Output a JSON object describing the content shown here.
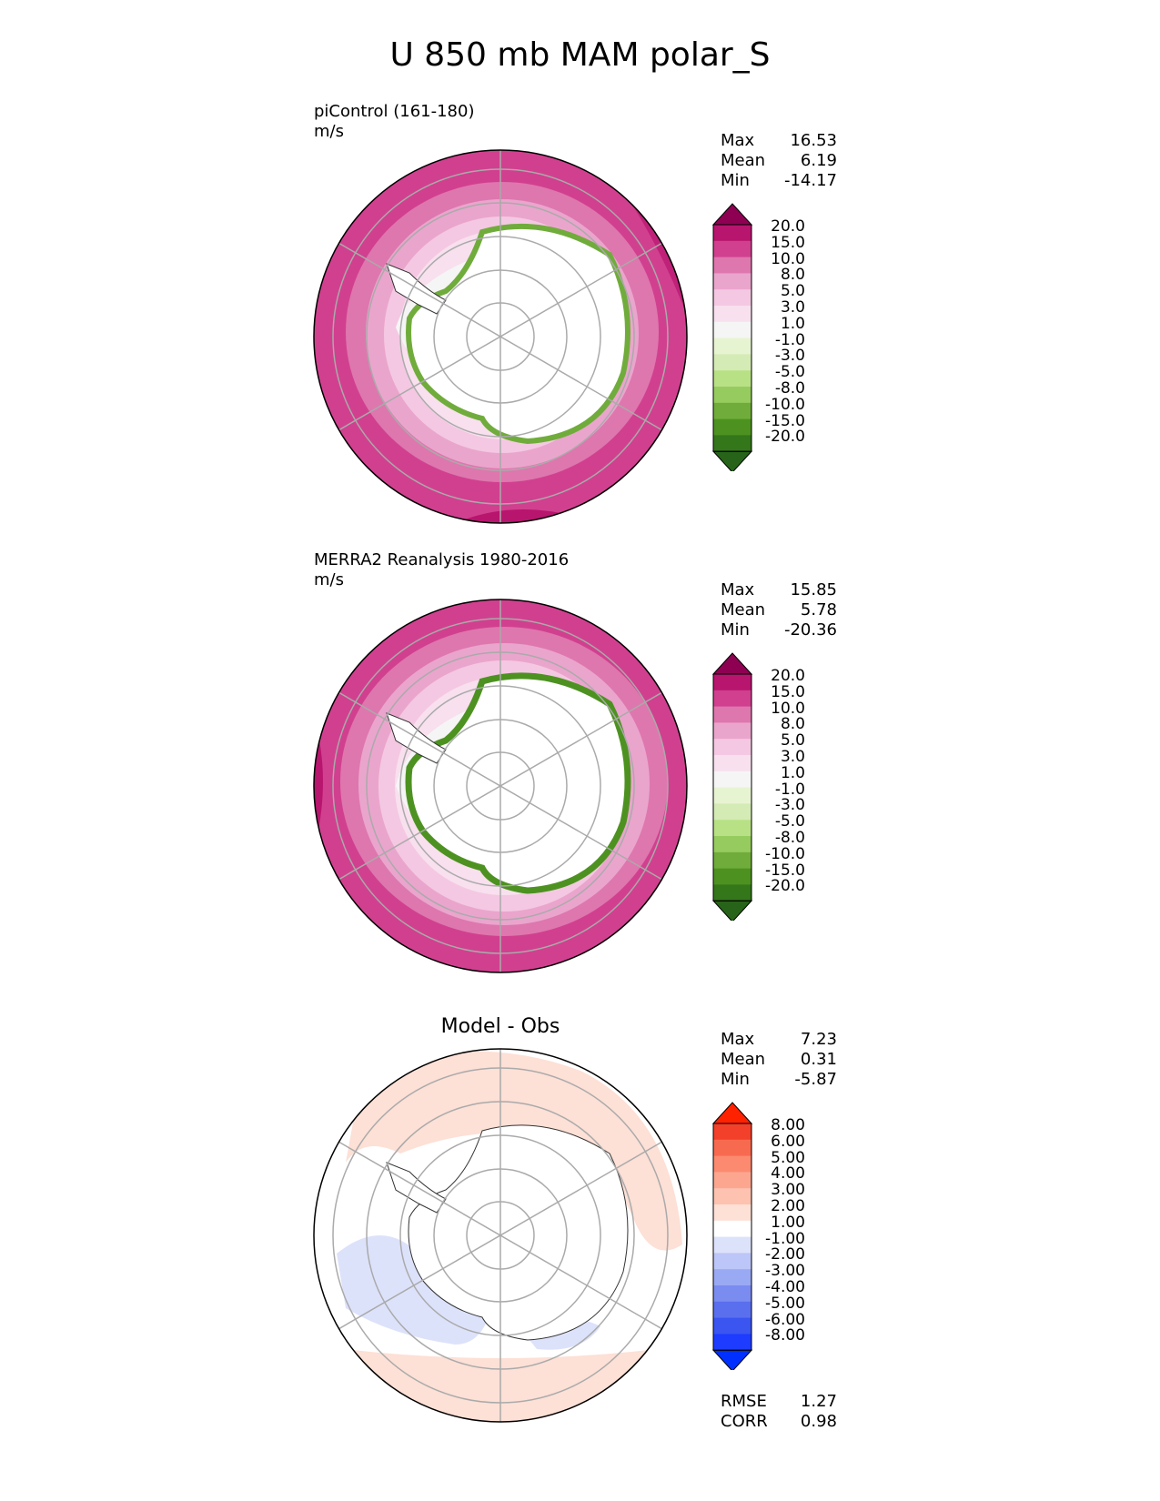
{
  "title": "U 850 mb MAM polar_S",
  "panels": [
    {
      "label1": "piControl (161-180)",
      "label2": "m/s",
      "stats": [
        {
          "label": "Max",
          "value": "16.53"
        },
        {
          "label": "Mean",
          "value": "6.19"
        },
        {
          "label": "Min",
          "value": "-14.17"
        }
      ],
      "colorbar": {
        "levels": [
          "20.0",
          "15.0",
          "10.0",
          "8.0",
          "5.0",
          "3.0",
          "1.0",
          "-1.0",
          "-3.0",
          "-5.0",
          "-8.0",
          "-10.0",
          "-15.0",
          "-20.0"
        ],
        "colors": [
          "#8e0152",
          "#b8156e",
          "#d1408f",
          "#de77ae",
          "#eaa5cd",
          "#f4c8e2",
          "#f8e0ee",
          "#f5f5f5",
          "#e7f4d2",
          "#d4ebb5",
          "#b8e186",
          "#96cc5f",
          "#70ac3b",
          "#4d9221",
          "#34761a",
          "#276419"
        ]
      }
    },
    {
      "label1": "MERRA2 Reanalysis 1980-2016",
      "label2": "m/s",
      "stats": [
        {
          "label": "Max",
          "value": "15.85"
        },
        {
          "label": "Mean",
          "value": "5.78"
        },
        {
          "label": "Min",
          "value": "-20.36"
        }
      ],
      "colorbar": {
        "levels": [
          "20.0",
          "15.0",
          "10.0",
          "8.0",
          "5.0",
          "3.0",
          "1.0",
          "-1.0",
          "-3.0",
          "-5.0",
          "-8.0",
          "-10.0",
          "-15.0",
          "-20.0"
        ],
        "colors": [
          "#8e0152",
          "#b8156e",
          "#d1408f",
          "#de77ae",
          "#eaa5cd",
          "#f4c8e2",
          "#f8e0ee",
          "#f5f5f5",
          "#e7f4d2",
          "#d4ebb5",
          "#b8e186",
          "#96cc5f",
          "#70ac3b",
          "#4d9221",
          "#34761a",
          "#276419"
        ]
      }
    },
    {
      "title": "Model - Obs",
      "stats": [
        {
          "label": "Max",
          "value": "7.23"
        },
        {
          "label": "Mean",
          "value": "0.31"
        },
        {
          "label": "Min",
          "value": "-5.87"
        }
      ],
      "colorbar": {
        "levels": [
          "8.00",
          "6.00",
          "5.00",
          "4.00",
          "3.00",
          "2.00",
          "1.00",
          "-1.00",
          "-2.00",
          "-3.00",
          "-4.00",
          "-5.00",
          "-6.00",
          "-8.00"
        ],
        "colors": [
          "#ff2200",
          "#f2402a",
          "#f86a50",
          "#fb8a70",
          "#fca690",
          "#fdc2b0",
          "#fde0d6",
          "#ffffff",
          "#dde2fb",
          "#bcc6f8",
          "#9aa9f4",
          "#7a8cf0",
          "#5a6fee",
          "#3a55f0",
          "#1e3cff",
          "#0030ff"
        ]
      },
      "metrics": [
        {
          "label": "RMSE",
          "value": "1.27"
        },
        {
          "label": "CORR",
          "value": "0.98"
        }
      ]
    }
  ]
}
